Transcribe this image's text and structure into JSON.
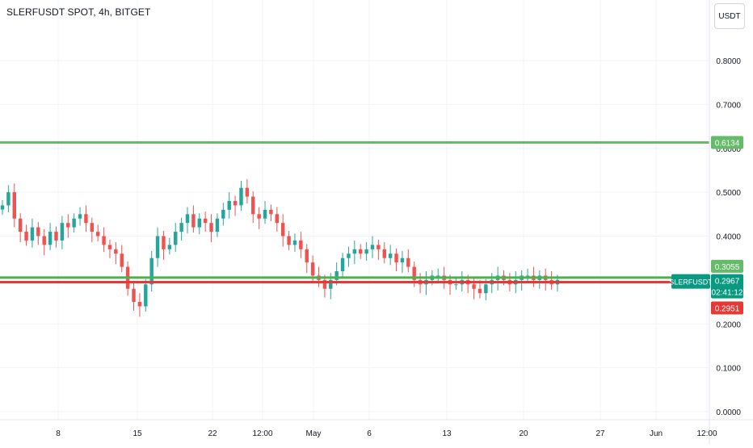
{
  "header": {
    "symbol_title": "SLERFUSDT SPOT, 4h, BITGET",
    "currency_button": "USDT"
  },
  "colors": {
    "up": "#26a69a",
    "down": "#ef5350",
    "support_line": "#4caf50",
    "resistance_line": "#66bb6a",
    "red_line": "#e53935",
    "grid": "#f0f3fa",
    "axis_text": "#131722",
    "price_badge": "#089981"
  },
  "chart_data": {
    "type": "candlestick",
    "ylim": [
      0,
      0.85
    ],
    "y_ticks": [
      {
        "value": 0.0,
        "label": "0.0000"
      },
      {
        "value": 0.1,
        "label": "0.1000"
      },
      {
        "value": 0.2,
        "label": "0.2000"
      },
      {
        "value": 0.3,
        "label": "0.3000"
      },
      {
        "value": 0.4,
        "label": "0.4000"
      },
      {
        "value": 0.5,
        "label": "0.5000"
      },
      {
        "value": 0.6,
        "label": "0.6000"
      },
      {
        "value": 0.7,
        "label": "0.7000"
      },
      {
        "value": 0.8,
        "label": "0.8000"
      }
    ],
    "x_ticks": [
      "8",
      "15",
      "22",
      "12:00",
      "May",
      "6",
      "13",
      "20",
      "27",
      "Jun",
      "12:00"
    ],
    "horizontal_lines": [
      {
        "name": "upper-green-line",
        "value": 0.6134,
        "color": "#66bb6a",
        "label": "0.6134"
      },
      {
        "name": "lower-green-line",
        "value": 0.3055,
        "color": "#4caf50",
        "label": "0.3055"
      },
      {
        "name": "red-line",
        "value": 0.2951,
        "color": "#e53935",
        "label": "0.2951"
      }
    ],
    "last_price": {
      "symbol": "SLERFUSDT",
      "value": 0.2967,
      "label": "0.2967",
      "countdown": "02:41:12"
    },
    "closes": [
      0.47,
      0.5,
      0.44,
      0.41,
      0.39,
      0.42,
      0.4,
      0.38,
      0.41,
      0.39,
      0.43,
      0.42,
      0.44,
      0.45,
      0.43,
      0.41,
      0.4,
      0.38,
      0.37,
      0.36,
      0.33,
      0.28,
      0.25,
      0.24,
      0.29,
      0.35,
      0.4,
      0.37,
      0.38,
      0.41,
      0.43,
      0.45,
      0.42,
      0.44,
      0.43,
      0.41,
      0.44,
      0.46,
      0.48,
      0.47,
      0.51,
      0.49,
      0.45,
      0.44,
      0.46,
      0.45,
      0.43,
      0.4,
      0.38,
      0.39,
      0.37,
      0.34,
      0.31,
      0.3,
      0.28,
      0.3,
      0.32,
      0.35,
      0.36,
      0.37,
      0.36,
      0.37,
      0.38,
      0.37,
      0.35,
      0.36,
      0.34,
      0.35,
      0.33,
      0.3,
      0.29,
      0.3,
      0.31,
      0.31,
      0.3,
      0.29,
      0.29,
      0.3,
      0.29,
      0.28,
      0.27,
      0.29,
      0.3,
      0.31,
      0.3,
      0.29,
      0.3,
      0.31,
      0.31,
      0.3,
      0.31,
      0.3,
      0.29,
      0.3
    ]
  }
}
